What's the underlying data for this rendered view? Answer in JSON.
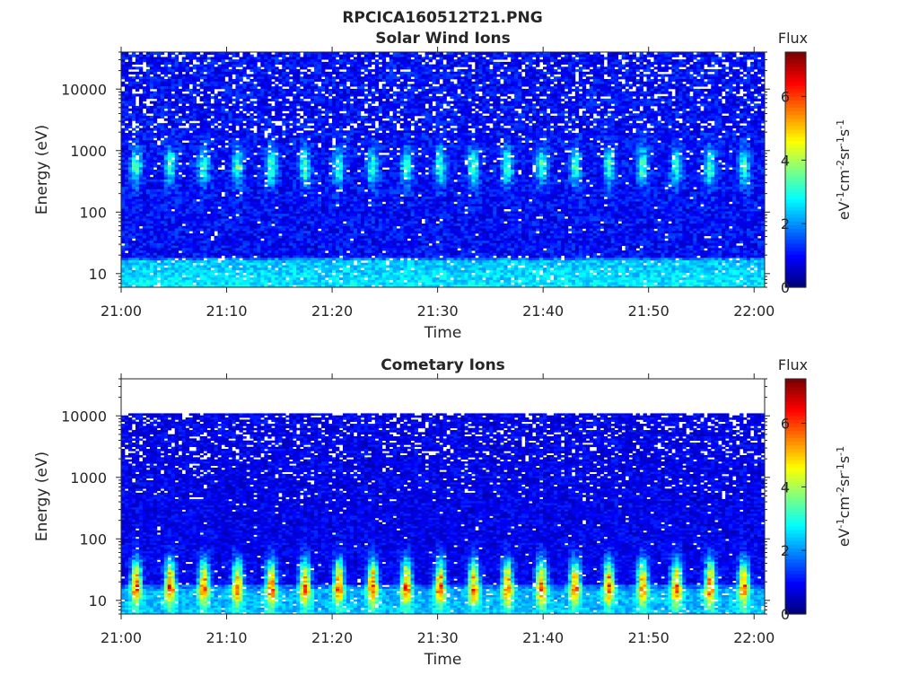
{
  "figure_title": "RPCICA160512T21.PNG",
  "colormap": [
    "#00007f",
    "#0000ff",
    "#007fff",
    "#00ffff",
    "#7fff7f",
    "#ffff00",
    "#ff7f00",
    "#ff0000",
    "#7f0000"
  ],
  "chart_data": [
    {
      "type": "heatmap",
      "title": "Solar Wind Ions",
      "xlabel": "Time",
      "ylabel": "Energy (eV)",
      "x_range": [
        "21:00",
        "22:01"
      ],
      "x_ticks": [
        "21:00",
        "21:10",
        "21:20",
        "21:30",
        "21:40",
        "21:50",
        "22:00"
      ],
      "y_scale": "log",
      "ylim": [
        6,
        40000
      ],
      "y_ticks": [
        10,
        100,
        1000,
        10000
      ],
      "y_tick_labels": [
        "10",
        "100",
        "1000",
        "10000"
      ],
      "data_top_energy": 40000,
      "colorbar": {
        "title": "Flux",
        "unit": "eV-1cm-2sr-1s-1",
        "range": [
          0,
          7.4
        ],
        "ticks": [
          "0",
          "2",
          "4",
          "6"
        ]
      },
      "features": [
        {
          "description": "periodic solar wind beam",
          "energy_range_eV": [
            300,
            1000
          ],
          "period_min": 3.2,
          "peak_flux": 3.5
        },
        {
          "description": "background",
          "energy_range_eV": [
            6,
            40000
          ],
          "typical_flux": 1.2
        }
      ]
    },
    {
      "type": "heatmap",
      "title": "Cometary Ions",
      "xlabel": "Time",
      "ylabel": "Energy (eV)",
      "x_range": [
        "21:00",
        "22:01"
      ],
      "x_ticks": [
        "21:00",
        "21:10",
        "21:20",
        "21:30",
        "21:40",
        "21:50",
        "22:00"
      ],
      "y_scale": "log",
      "ylim": [
        6,
        40000
      ],
      "y_ticks": [
        10,
        100,
        1000,
        10000
      ],
      "y_tick_labels": [
        "10",
        "100",
        "1000",
        "10000"
      ],
      "data_top_energy": 11000,
      "colorbar": {
        "title": "Flux",
        "unit": "eV-1cm-2sr-1s-1",
        "range": [
          0,
          7.4
        ],
        "ticks": [
          "0",
          "2",
          "4",
          "6"
        ]
      },
      "features": [
        {
          "description": "periodic cometary ion bursts",
          "energy_range_eV": [
            10,
            40
          ],
          "period_min": 3.2,
          "peak_flux": 5.8
        },
        {
          "description": "background",
          "energy_range_eV": [
            6,
            11000
          ],
          "typical_flux": 1.0
        }
      ]
    }
  ]
}
